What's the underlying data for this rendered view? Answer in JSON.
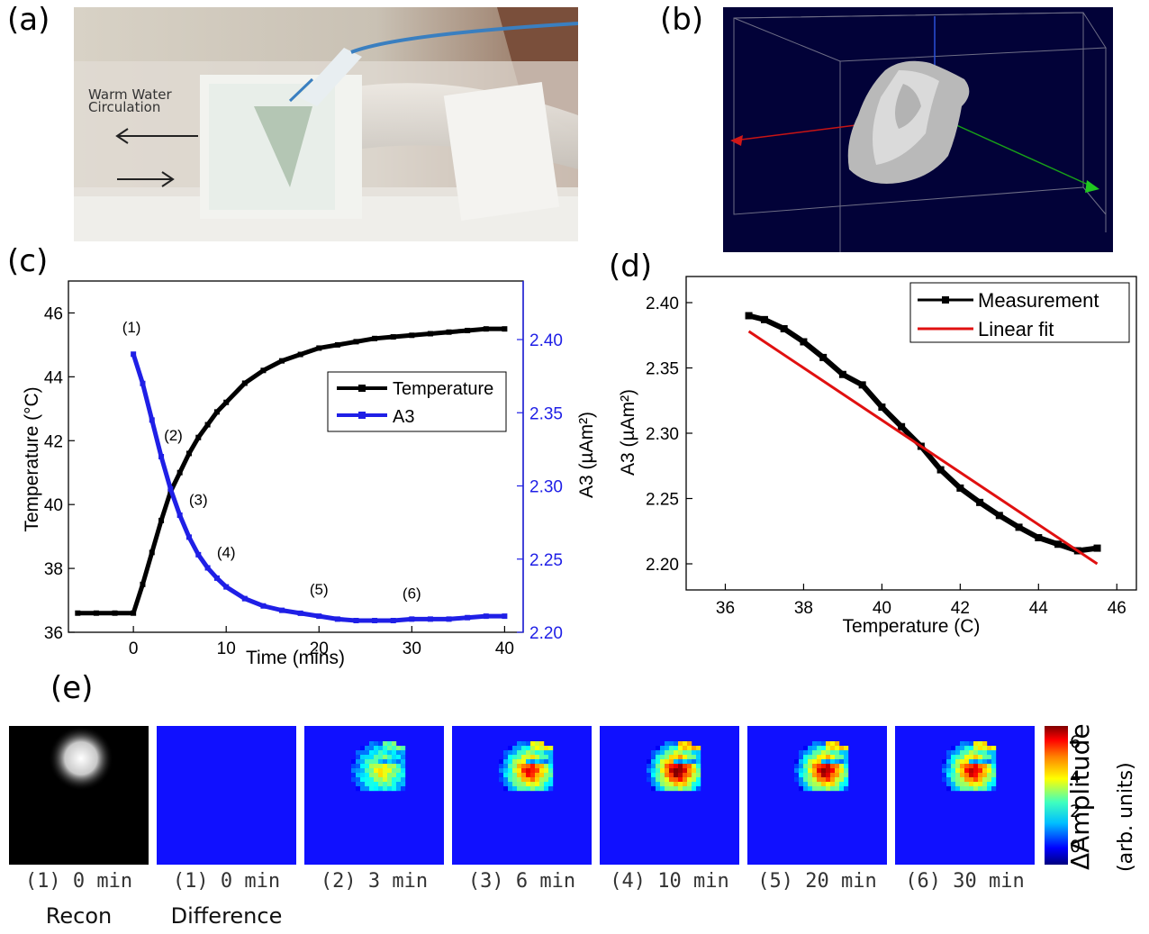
{
  "panels": {
    "a": {
      "label": "(a)",
      "annotation_line1": "Warm Water",
      "annotation_line2": "Circulation"
    },
    "b": {
      "label": "(b)"
    },
    "c": {
      "label": "(c)"
    },
    "d": {
      "label": "(d)"
    },
    "e": {
      "label": "(e)"
    }
  },
  "chart_data": [
    {
      "panel": "c",
      "type": "line",
      "xlabel": "Time (mins)",
      "ylabel_left": "Temperature (°C)",
      "ylabel_right": "A3 (µAm²)",
      "xlim": [
        -7,
        42
      ],
      "xticks": [
        0,
        10,
        20,
        30,
        40
      ],
      "ylim_left": [
        36,
        47
      ],
      "yticks_left": [
        36,
        38,
        40,
        42,
        44,
        46
      ],
      "ylim_right": [
        2.2,
        2.44
      ],
      "yticks_right": [
        2.2,
        2.25,
        2.3,
        2.35,
        2.4
      ],
      "legend": [
        "Temperature",
        "A3"
      ],
      "legend_position": "center-right",
      "series": [
        {
          "name": "Temperature",
          "color": "#000000",
          "axis": "left",
          "x": [
            -6,
            -4,
            -2,
            0,
            1,
            2,
            3,
            4,
            5,
            6,
            7,
            8,
            9,
            10,
            12,
            14,
            16,
            18,
            20,
            22,
            24,
            26,
            28,
            30,
            32,
            34,
            36,
            38,
            40
          ],
          "y": [
            36.6,
            36.6,
            36.6,
            36.6,
            37.5,
            38.5,
            39.5,
            40.4,
            41.0,
            41.6,
            42.1,
            42.5,
            42.9,
            43.2,
            43.8,
            44.2,
            44.5,
            44.7,
            44.9,
            45.0,
            45.1,
            45.2,
            45.25,
            45.3,
            45.35,
            45.4,
            45.45,
            45.5,
            45.5
          ]
        },
        {
          "name": "A3",
          "color": "#1f1fe6",
          "axis": "right",
          "x": [
            0,
            1,
            2,
            3,
            4,
            5,
            6,
            7,
            8,
            9,
            10,
            12,
            14,
            16,
            18,
            20,
            22,
            24,
            26,
            28,
            30,
            32,
            34,
            36,
            38,
            40
          ],
          "y": [
            2.39,
            2.37,
            2.345,
            2.32,
            2.298,
            2.28,
            2.265,
            2.253,
            2.244,
            2.237,
            2.231,
            2.223,
            2.218,
            2.215,
            2.213,
            2.211,
            2.209,
            2.208,
            2.208,
            2.208,
            2.209,
            2.209,
            2.209,
            2.21,
            2.211,
            2.211
          ]
        }
      ],
      "annotations": [
        {
          "text": "(1)",
          "x": -0.2,
          "y_right": 2.405
        },
        {
          "text": "(2)",
          "x": 4.3,
          "y_right": 2.331
        },
        {
          "text": "(3)",
          "x": 7.0,
          "y_right": 2.287
        },
        {
          "text": "(4)",
          "x": 10.0,
          "y_right": 2.251
        },
        {
          "text": "(5)",
          "x": 20.0,
          "y_right": 2.226
        },
        {
          "text": "(6)",
          "x": 30.0,
          "y_right": 2.223
        }
      ]
    },
    {
      "panel": "d",
      "type": "scatter",
      "xlabel": "Temperature (C)",
      "ylabel": "A3 (µAm²)",
      "xlim": [
        35,
        46.5
      ],
      "xticks": [
        36,
        38,
        40,
        42,
        44,
        46
      ],
      "ylim": [
        2.18,
        2.42
      ],
      "yticks": [
        2.2,
        2.25,
        2.3,
        2.35,
        2.4
      ],
      "legend": [
        "Measurement",
        "Linear fit"
      ],
      "legend_position": "top-right",
      "series": [
        {
          "name": "Measurement",
          "color": "#000000",
          "x": [
            36.6,
            37.0,
            37.5,
            38.0,
            38.5,
            39.0,
            39.5,
            40.0,
            40.5,
            41.0,
            41.5,
            42.0,
            42.5,
            43.0,
            43.5,
            44.0,
            44.5,
            45.0,
            45.5
          ],
          "y": [
            2.39,
            2.387,
            2.38,
            2.37,
            2.358,
            2.345,
            2.337,
            2.32,
            2.305,
            2.29,
            2.272,
            2.258,
            2.247,
            2.237,
            2.228,
            2.22,
            2.215,
            2.21,
            2.212
          ]
        },
        {
          "name": "Linear fit",
          "color": "#e01010",
          "x": [
            36.6,
            45.5
          ],
          "y": [
            2.378,
            2.2
          ]
        }
      ]
    }
  ],
  "tiles": [
    {
      "line1": "(1) 0 min",
      "line2": "Recon",
      "kind": "recon"
    },
    {
      "line1": "(1) 0 min",
      "line2": "Difference",
      "kind": "blank"
    },
    {
      "line1": "(2) 3 min",
      "line2": "",
      "kind": "diff",
      "level": 0.55
    },
    {
      "line1": "(3) 6 min",
      "line2": "",
      "kind": "diff",
      "level": 0.85
    },
    {
      "line1": "(4) 10 min",
      "line2": "",
      "kind": "diff",
      "level": 1.0
    },
    {
      "line1": "(5) 20 min",
      "line2": "",
      "kind": "diff",
      "level": 0.95
    },
    {
      "line1": "(6) 30 min",
      "line2": "",
      "kind": "diff",
      "level": 0.9
    }
  ],
  "colorbar": {
    "label": "ΔAmplitude",
    "sublabel": "(arb. units)",
    "ticks": [
      "0",
      "2",
      "4",
      "6"
    ],
    "range": [
      -1,
      7
    ]
  }
}
